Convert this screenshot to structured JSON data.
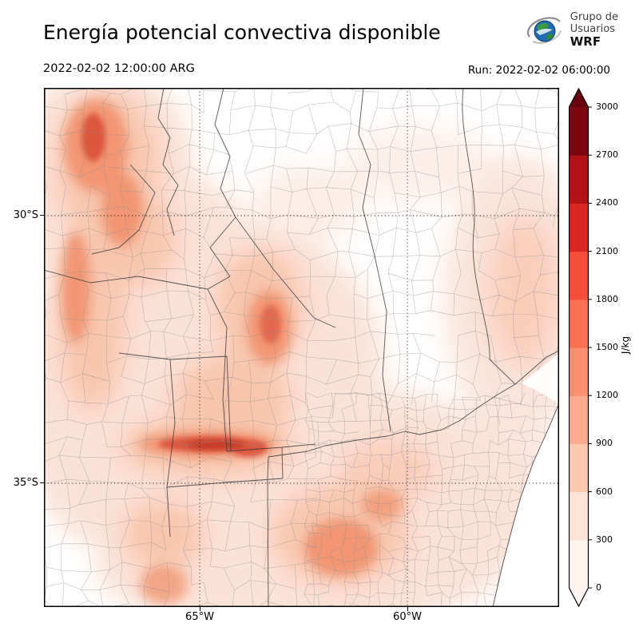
{
  "header": {
    "title": "Energía potencial convectiva disponible",
    "logo": {
      "line1": "Grupo de",
      "line2": "Usuarios",
      "line3": "WRF"
    }
  },
  "subheader": {
    "valid_time": "2022-02-02 12:00:00 ARG",
    "run": "Run: 2022-02-02 06:00:00"
  },
  "map": {
    "lat_ticks": [
      "30°S",
      "35°S"
    ],
    "lon_ticks": [
      "65°W",
      "60°W"
    ]
  },
  "colorbar": {
    "unit": "J/kg",
    "levels": [
      0,
      300,
      600,
      900,
      1200,
      1500,
      1800,
      2100,
      2400,
      2700,
      3000
    ],
    "colors": [
      "#fff4ee",
      "#fee3d6",
      "#fcc8b0",
      "#fcab8f",
      "#fc8f6f",
      "#fb7050",
      "#f44f39",
      "#d92723",
      "#b11218",
      "#7c0510"
    ],
    "over_color": "#67000d",
    "under_color": "#fff5f0"
  },
  "chart_data": {
    "type": "heatmap",
    "title": "Energía potencial convectiva disponible",
    "unit": "J/kg",
    "valid_time": "2022-02-02 12:00:00 ARG",
    "run_label": "Run: 2022-02-02 06:00:00",
    "levels": [
      0,
      300,
      600,
      900,
      1200,
      1500,
      1800,
      2100,
      2400,
      2700,
      3000
    ],
    "colors": [
      "#fff4ee",
      "#fee3d6",
      "#fcc8b0",
      "#fcab8f",
      "#fc8f6f",
      "#fb7050",
      "#f44f39",
      "#d92723",
      "#b11218",
      "#7c0510"
    ],
    "x_ticks": [
      "65°W",
      "60°W"
    ],
    "y_ticks": [
      "30°S",
      "35°S"
    ],
    "legend_position": "right",
    "grid": "dotted"
  }
}
